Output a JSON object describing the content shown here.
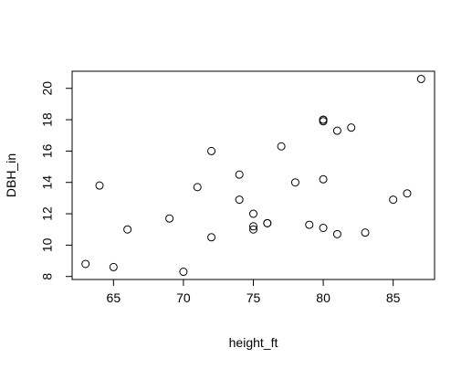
{
  "chart_data": {
    "type": "scatter",
    "x_label": "height_ft",
    "y_label": "DBH_in",
    "x": [
      70,
      65,
      63,
      72,
      81,
      83,
      66,
      75,
      80,
      75,
      79,
      76,
      76,
      69,
      75,
      74,
      85,
      86,
      71,
      64,
      78,
      80,
      74,
      72,
      77,
      81,
      82,
      80,
      80,
      80,
      87
    ],
    "values": [
      8.3,
      8.6,
      8.8,
      10.5,
      10.7,
      10.8,
      11.0,
      11.0,
      11.1,
      11.2,
      11.3,
      11.4,
      11.4,
      11.7,
      12.0,
      12.9,
      12.9,
      13.3,
      13.7,
      13.8,
      14.0,
      14.2,
      14.5,
      16.0,
      16.3,
      17.3,
      17.5,
      17.9,
      18.0,
      18.0,
      20.6
    ],
    "color": "#000000",
    "xlim": [
      62.04,
      87.96
    ],
    "xticks": [
      65,
      70,
      75,
      80,
      85
    ],
    "ylim": [
      7.808,
      21.092
    ],
    "yticks": [
      8,
      10,
      12,
      14,
      16,
      18,
      20
    ],
    "grid": false
  }
}
